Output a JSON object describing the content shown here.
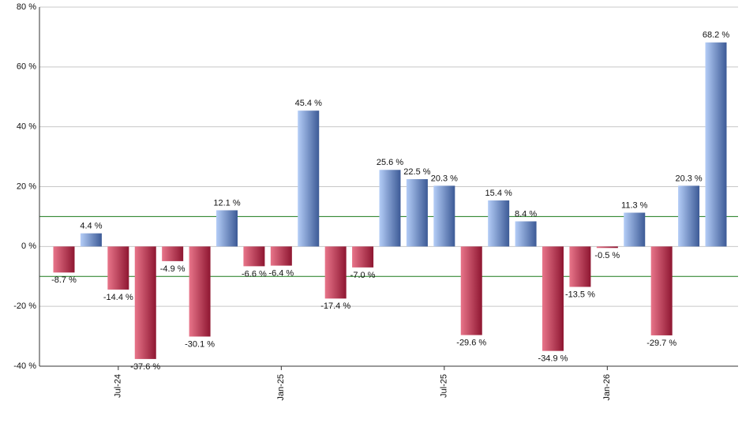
{
  "chart_data": {
    "type": "bar",
    "categories": [
      null,
      null,
      "Jul-24",
      null,
      null,
      null,
      null,
      null,
      "Jan-25",
      null,
      null,
      null,
      null,
      null,
      "Jul-25",
      null,
      null,
      null,
      null,
      null,
      "Jan-26",
      null,
      null,
      null,
      null
    ],
    "values": [
      -8.7,
      4.4,
      -14.4,
      -37.6,
      -4.9,
      -30.1,
      12.1,
      -6.6,
      -6.4,
      45.4,
      -17.4,
      -7.0,
      25.6,
      22.5,
      20.3,
      -29.6,
      15.4,
      8.4,
      -34.9,
      -13.5,
      -0.5,
      11.3,
      -29.7,
      20.3,
      68.2
    ],
    "value_labels": [
      "-8.7 %",
      "4.4 %",
      "-14.4 %",
      "-37.6 %",
      "-4.9 %",
      "-30.1 %",
      "12.1 %",
      "-6.6 %",
      "-6.4 %",
      "45.4 %",
      "-17.4 %",
      "-7.0 %",
      "25.6 %",
      "22.5 %",
      "20.3 %",
      "-29.6 %",
      "15.4 %",
      "8.4 %",
      "-34.9 %",
      "-13.5 %",
      "-0.5 %",
      "11.3 %",
      "-29.7 %",
      "20.3 %",
      "68.2 %"
    ],
    "positive_colors": [
      "#b4cdf7",
      "#3c5a96"
    ],
    "negative_colors": [
      "#e8758a",
      "#8e1631"
    ],
    "ylim": [
      -40,
      80
    ],
    "yticks": [
      {
        "value": -40,
        "label": "-40 %"
      },
      {
        "value": -20,
        "label": "-20 %"
      },
      {
        "value": 0,
        "label": "0 %"
      },
      {
        "value": 20,
        "label": "20 %"
      },
      {
        "value": 40,
        "label": "40 %"
      },
      {
        "value": 60,
        "label": "60 %"
      },
      {
        "value": 80,
        "label": "80 %"
      }
    ],
    "grid": true,
    "reference_lines": [
      10,
      -10
    ],
    "reference_color": "#1a7a1a"
  }
}
